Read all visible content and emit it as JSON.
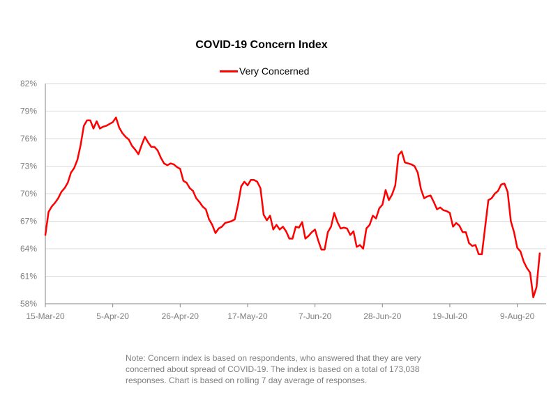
{
  "chart_data": {
    "type": "line",
    "title": "COVID-19 Concern Index",
    "xlabel": "",
    "ylabel": "",
    "ylim": [
      58,
      82
    ],
    "yticks": [
      "58%",
      "61%",
      "64%",
      "67%",
      "70%",
      "73%",
      "76%",
      "79%",
      "82%"
    ],
    "ytick_values": [
      58,
      61,
      64,
      67,
      70,
      73,
      76,
      79,
      82
    ],
    "xticks": [
      "15-Mar-20",
      "5-Apr-20",
      "26-Apr-20",
      "17-May-20",
      "7-Jun-20",
      "28-Jun-20",
      "19-Jul-20",
      "9-Aug-20"
    ],
    "xtick_day_offsets": [
      0,
      21,
      42,
      63,
      84,
      105,
      126,
      147
    ],
    "x_start": "15-Mar-20",
    "x_axis_days": 156,
    "grid": "horizontal",
    "legend_position": "top-center",
    "series": [
      {
        "name": "Very Concerned",
        "color": "#ff0000",
        "start_date": "15-Mar-20",
        "step": "1 day",
        "values": [
          65.5,
          68.0,
          68.6,
          69.0,
          69.5,
          70.2,
          70.6,
          71.2,
          72.3,
          72.8,
          73.7,
          75.3,
          77.4,
          78.0,
          78.0,
          77.1,
          77.9,
          77.1,
          77.3,
          77.4,
          77.6,
          77.8,
          78.3,
          77.2,
          76.6,
          76.2,
          75.9,
          75.2,
          74.8,
          74.3,
          75.3,
          76.2,
          75.6,
          75.1,
          75.1,
          74.7,
          73.9,
          73.3,
          73.1,
          73.3,
          73.2,
          72.9,
          72.7,
          71.4,
          71.2,
          70.6,
          70.3,
          69.5,
          69.1,
          68.6,
          68.3,
          67.2,
          66.6,
          65.7,
          66.2,
          66.4,
          66.8,
          66.9,
          67.0,
          67.2,
          68.8,
          70.8,
          71.3,
          70.9,
          71.5,
          71.5,
          71.3,
          70.6,
          67.7,
          67.1,
          67.6,
          66.1,
          66.6,
          66.1,
          66.4,
          65.9,
          65.1,
          65.1,
          66.4,
          66.3,
          66.9,
          65.1,
          65.4,
          65.8,
          66.1,
          64.9,
          63.9,
          63.9,
          65.8,
          66.4,
          67.9,
          66.9,
          66.2,
          66.3,
          66.2,
          65.5,
          65.9,
          64.2,
          64.4,
          64.0,
          66.2,
          66.6,
          67.6,
          67.3,
          68.4,
          68.8,
          70.4,
          69.3,
          69.9,
          70.9,
          74.2,
          74.6,
          73.4,
          73.3,
          73.2,
          73.0,
          72.3,
          70.5,
          69.5,
          69.7,
          69.8,
          69.1,
          68.3,
          68.5,
          68.2,
          68.1,
          67.9,
          66.4,
          66.8,
          66.5,
          65.8,
          65.8,
          64.6,
          64.3,
          64.4,
          63.4,
          63.4,
          66.4,
          69.3,
          69.5,
          70.0,
          70.3,
          71.0,
          71.1,
          70.2,
          67.0,
          65.8,
          64.1,
          63.7,
          62.6,
          61.9,
          61.4,
          58.7,
          59.8,
          63.5
        ]
      }
    ]
  },
  "legend": {
    "label": "Very Concerned",
    "color": "#ff0000"
  },
  "note": "Note: Concern index is based on respondents, who answered that they are very concerned about spread of COVID-19. The index is based on a total of 173,038 responses. Chart is based on rolling 7 day average of responses."
}
